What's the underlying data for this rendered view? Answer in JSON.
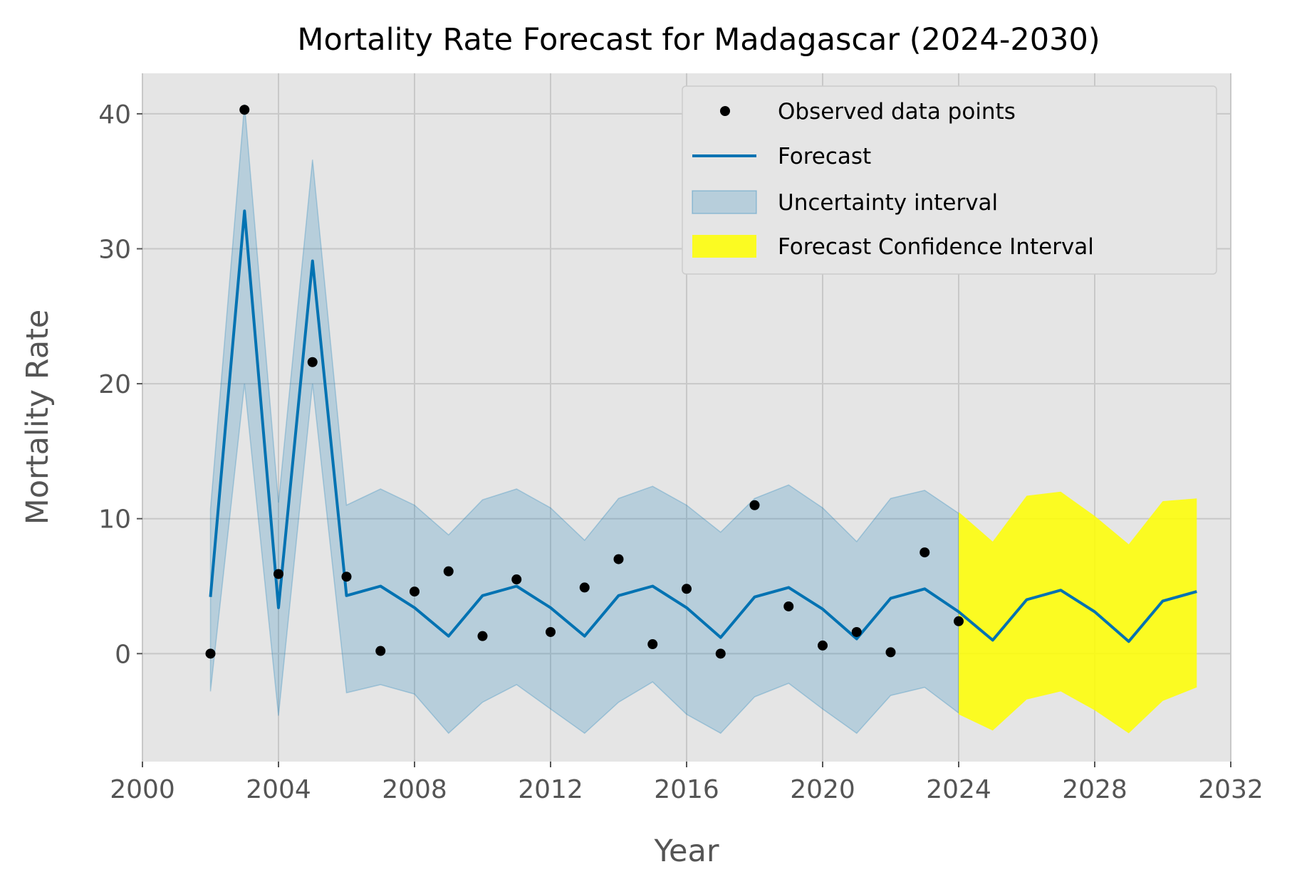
{
  "chart_data": {
    "type": "line",
    "title": "Mortality Rate Forecast for Madagascar (2024-2030)",
    "xlabel": "Year",
    "ylabel": "Mortality Rate",
    "xlim": [
      2000,
      2032
    ],
    "ylim": [
      -8,
      43
    ],
    "xticks": [
      2000,
      2004,
      2008,
      2012,
      2016,
      2020,
      2024,
      2028,
      2032
    ],
    "yticks": [
      0,
      10,
      20,
      30,
      40
    ],
    "grid": true,
    "legend_position": "top-right",
    "legend": [
      "Observed data points",
      "Forecast",
      "Uncertainty interval",
      "Forecast Confidence Interval"
    ],
    "colors": {
      "observed": "#000000",
      "forecast": "#0072b2",
      "uncertainty": "#0072b2",
      "forecast_ci": "#ffff00",
      "plot_bg": "#e5e5e5",
      "grid": "#c8c8c8"
    },
    "observed": {
      "x": [
        2002,
        2003,
        2004,
        2005,
        2006,
        2007,
        2008,
        2009,
        2010,
        2011,
        2012,
        2013,
        2014,
        2015,
        2016,
        2017,
        2018,
        2019,
        2020,
        2021,
        2022,
        2023,
        2024
      ],
      "y": [
        0.0,
        40.3,
        5.9,
        21.6,
        5.7,
        0.2,
        4.6,
        6.1,
        1.3,
        5.5,
        1.6,
        4.9,
        7.0,
        0.7,
        4.8,
        0.0,
        11.0,
        3.5,
        0.6,
        1.6,
        0.1,
        7.5,
        2.4
      ]
    },
    "forecast": {
      "x": [
        2002,
        2003,
        2004,
        2005,
        2006,
        2007,
        2008,
        2009,
        2010,
        2011,
        2012,
        2013,
        2014,
        2015,
        2016,
        2017,
        2018,
        2019,
        2020,
        2021,
        2022,
        2023,
        2024,
        2025,
        2026,
        2027,
        2028,
        2029,
        2030,
        2031
      ],
      "y": [
        4.2,
        32.8,
        3.4,
        29.1,
        4.3,
        5.0,
        3.4,
        1.3,
        4.3,
        5.0,
        3.4,
        1.3,
        4.3,
        5.0,
        3.4,
        1.2,
        4.2,
        4.9,
        3.3,
        1.1,
        4.1,
        4.8,
        3.1,
        1.0,
        4.0,
        4.7,
        3.1,
        0.9,
        3.9,
        4.6
      ]
    },
    "uncertainty_interval": {
      "x": [
        2002,
        2003,
        2004,
        2005,
        2006,
        2007,
        2008,
        2009,
        2010,
        2011,
        2012,
        2013,
        2014,
        2015,
        2016,
        2017,
        2018,
        2019,
        2020,
        2021,
        2022,
        2023,
        2024
      ],
      "lower": [
        -2.8,
        20.0,
        -4.6,
        20.0,
        -2.9,
        -2.3,
        -3.0,
        -5.9,
        -3.6,
        -2.3,
        -4.1,
        -5.9,
        -3.6,
        -2.1,
        -4.5,
        -5.9,
        -3.2,
        -2.2,
        -4.1,
        -5.9,
        -3.1,
        -2.5,
        -4.4
      ],
      "upper": [
        10.7,
        40.7,
        11.2,
        36.6,
        11.0,
        12.2,
        11.0,
        8.8,
        11.4,
        12.2,
        10.8,
        8.4,
        11.5,
        12.4,
        11.0,
        9.0,
        11.5,
        12.5,
        10.8,
        8.3,
        11.5,
        12.1,
        10.4
      ]
    },
    "forecast_confidence_interval": {
      "x": [
        2024,
        2025,
        2026,
        2027,
        2028,
        2029,
        2030,
        2031
      ],
      "lower": [
        -4.5,
        -5.7,
        -3.4,
        -2.8,
        -4.2,
        -5.9,
        -3.5,
        -2.5
      ],
      "upper": [
        10.5,
        8.3,
        11.7,
        12.0,
        10.2,
        8.1,
        11.3,
        11.5
      ]
    }
  }
}
